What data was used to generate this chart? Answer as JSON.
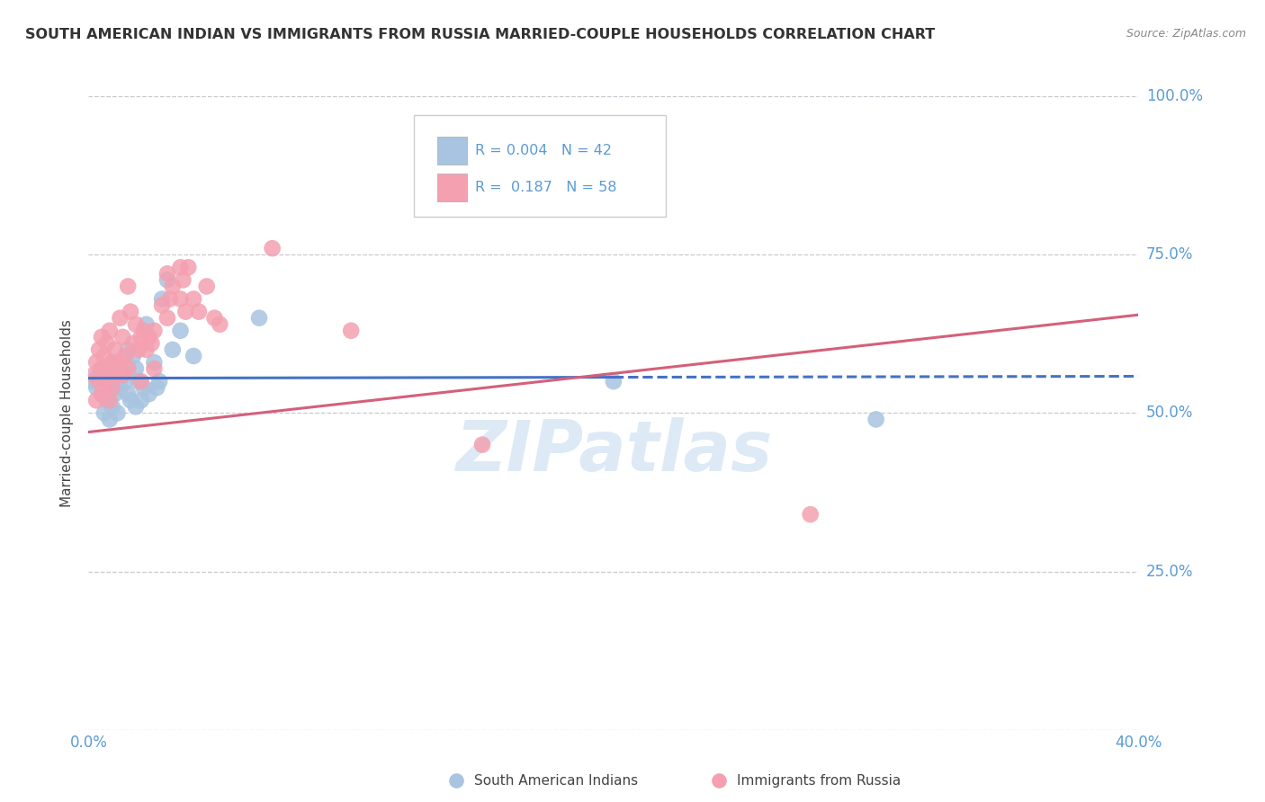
{
  "title": "SOUTH AMERICAN INDIAN VS IMMIGRANTS FROM RUSSIA MARRIED-COUPLE HOUSEHOLDS CORRELATION CHART",
  "source": "Source: ZipAtlas.com",
  "ylabel": "Married-couple Households",
  "legend_label1": "South American Indians",
  "legend_label2": "Immigrants from Russia",
  "r1": 0.004,
  "n1": 42,
  "r2": 0.187,
  "n2": 58,
  "color1": "#a8c4e0",
  "color2": "#f4a0b0",
  "line_color1": "#4472c4",
  "line_color2": "#d4607a",
  "watermark": "ZIPatlas",
  "background_color": "#ffffff",
  "grid_color": "#c8c8d0",
  "axis_color": "#5b9bd5",
  "xmin": 0.0,
  "xmax": 40.0,
  "ymin": 0.0,
  "ymax": 100.0,
  "blue_line_x0": 0.0,
  "blue_line_y0": 55.5,
  "blue_line_x1": 40.0,
  "blue_line_y1": 55.8,
  "blue_line_solid_end": 20.0,
  "pink_line_x0": 0.0,
  "pink_line_y0": 47.0,
  "pink_line_x1": 40.0,
  "pink_line_y1": 65.5,
  "blue_dots": [
    [
      0.2,
      55
    ],
    [
      0.3,
      54
    ],
    [
      0.4,
      56
    ],
    [
      0.5,
      53
    ],
    [
      0.5,
      57
    ],
    [
      0.6,
      50
    ],
    [
      0.6,
      55
    ],
    [
      0.7,
      52
    ],
    [
      0.8,
      54
    ],
    [
      0.8,
      49
    ],
    [
      0.9,
      56
    ],
    [
      0.9,
      51
    ],
    [
      1.0,
      53
    ],
    [
      1.0,
      58
    ],
    [
      1.1,
      55
    ],
    [
      1.1,
      50
    ],
    [
      1.2,
      57
    ],
    [
      1.2,
      54
    ],
    [
      1.3,
      56
    ],
    [
      1.4,
      55
    ],
    [
      1.5,
      53
    ],
    [
      1.5,
      60
    ],
    [
      1.6,
      52
    ],
    [
      1.7,
      59
    ],
    [
      1.8,
      51
    ],
    [
      1.8,
      57
    ],
    [
      1.9,
      55
    ],
    [
      2.0,
      52
    ],
    [
      2.1,
      54
    ],
    [
      2.2,
      64
    ],
    [
      2.3,
      53
    ],
    [
      2.5,
      58
    ],
    [
      2.6,
      54
    ],
    [
      2.7,
      55
    ],
    [
      2.8,
      68
    ],
    [
      3.0,
      71
    ],
    [
      3.2,
      60
    ],
    [
      3.5,
      63
    ],
    [
      4.0,
      59
    ],
    [
      6.5,
      65
    ],
    [
      20.0,
      55
    ],
    [
      30.0,
      49
    ]
  ],
  "pink_dots": [
    [
      0.2,
      56
    ],
    [
      0.3,
      58
    ],
    [
      0.3,
      52
    ],
    [
      0.4,
      60
    ],
    [
      0.4,
      55
    ],
    [
      0.5,
      57
    ],
    [
      0.5,
      62
    ],
    [
      0.5,
      53
    ],
    [
      0.6,
      59
    ],
    [
      0.6,
      54
    ],
    [
      0.7,
      61
    ],
    [
      0.7,
      56
    ],
    [
      0.8,
      63
    ],
    [
      0.8,
      57
    ],
    [
      0.8,
      52
    ],
    [
      0.9,
      58
    ],
    [
      0.9,
      54
    ],
    [
      1.0,
      60
    ],
    [
      1.0,
      56
    ],
    [
      1.1,
      57
    ],
    [
      1.2,
      65
    ],
    [
      1.2,
      58
    ],
    [
      1.3,
      62
    ],
    [
      1.3,
      56
    ],
    [
      1.4,
      59
    ],
    [
      1.5,
      57
    ],
    [
      1.5,
      70
    ],
    [
      1.6,
      66
    ],
    [
      1.7,
      61
    ],
    [
      1.8,
      64
    ],
    [
      1.9,
      60
    ],
    [
      2.0,
      62
    ],
    [
      2.0,
      55
    ],
    [
      2.1,
      63
    ],
    [
      2.2,
      60
    ],
    [
      2.3,
      62
    ],
    [
      2.4,
      61
    ],
    [
      2.5,
      63
    ],
    [
      2.5,
      57
    ],
    [
      2.8,
      67
    ],
    [
      3.0,
      65
    ],
    [
      3.0,
      72
    ],
    [
      3.1,
      68
    ],
    [
      3.2,
      70
    ],
    [
      3.5,
      68
    ],
    [
      3.5,
      73
    ],
    [
      3.6,
      71
    ],
    [
      3.7,
      66
    ],
    [
      3.8,
      73
    ],
    [
      4.0,
      68
    ],
    [
      4.2,
      66
    ],
    [
      4.5,
      70
    ],
    [
      4.8,
      65
    ],
    [
      5.0,
      64
    ],
    [
      7.0,
      76
    ],
    [
      10.0,
      63
    ],
    [
      15.0,
      45
    ],
    [
      27.5,
      34
    ]
  ]
}
